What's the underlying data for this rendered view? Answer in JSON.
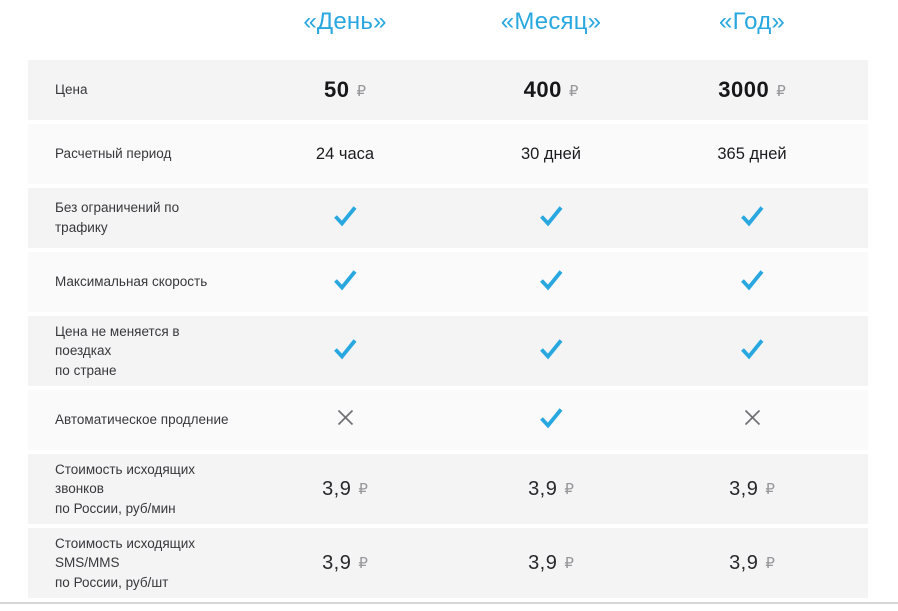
{
  "currency_symbol": "₽",
  "colors": {
    "accent_blue": "#29A7DF",
    "cross_gray": "#707074",
    "row_shade_dark": "#F4F4F5",
    "row_shade_light": "#FAFAFB",
    "price_text": "#17171A",
    "ruble_sign": "#97979B"
  },
  "icons": {
    "check": "check-icon",
    "cross": "cross-icon"
  },
  "table": {
    "columns": [
      "«День»",
      "«Месяц»",
      "«Год»"
    ],
    "rows": [
      {
        "label": "Цена",
        "type": "price",
        "style": "bold",
        "values": [
          "50",
          "400",
          "3000"
        ]
      },
      {
        "label": "Расчетный период",
        "type": "text",
        "values": [
          "24 часа",
          "30 дней",
          "365 дней"
        ]
      },
      {
        "label": "Без ограничений по трафику",
        "type": "boolean",
        "values": [
          true,
          true,
          true
        ]
      },
      {
        "label": "Максимальная скорость",
        "type": "boolean",
        "values": [
          true,
          true,
          true
        ]
      },
      {
        "label": "Цена не меняется в поездках\nпо стране",
        "type": "boolean",
        "values": [
          true,
          true,
          true
        ]
      },
      {
        "label": "Автоматическое продление",
        "type": "boolean",
        "values": [
          false,
          true,
          false
        ]
      },
      {
        "label": "Стоимость исходящих звонков\nпо России, руб/мин",
        "type": "price",
        "style": "regular",
        "values": [
          "3,9",
          "3,9",
          "3,9"
        ]
      },
      {
        "label": "Стоимость исходящих SMS/MMS\nпо России, руб/шт",
        "type": "price",
        "style": "regular",
        "values": [
          "3,9",
          "3,9",
          "3,9"
        ]
      }
    ]
  }
}
